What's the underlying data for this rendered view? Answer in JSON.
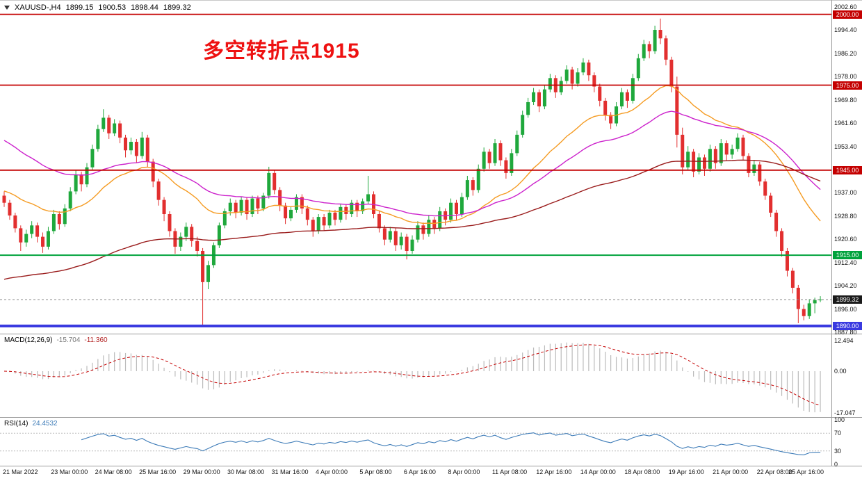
{
  "titlebar": {
    "symbol_period": "XAUUSD-,H4",
    "open": "1899.15",
    "high": "1900.53",
    "low": "1898.44",
    "close": "1899.32"
  },
  "annotation": {
    "text": "多空转折点1915",
    "color": "#ee1111"
  },
  "colors": {
    "bull": "#1fa83c",
    "bear": "#e22f2f",
    "macd_hist": "#bbbbbb",
    "macd_signal": "#c40000",
    "rsi_line": "#3e7cb8",
    "price_badge_bg": "#1a1a1a"
  },
  "chart_data": {
    "type": "candlestick",
    "symbol": "XAUUSD",
    "timeframe": "H4",
    "title": "XAUUSD-,H4",
    "current_ohlc": {
      "open": 1899.15,
      "high": 1900.53,
      "low": 1898.44,
      "close": 1899.32
    },
    "x_labels": [
      "21 Mar 2022",
      "23 Mar 00:00",
      "24 Mar 08:00",
      "25 Mar 16:00",
      "29 Mar 00:00",
      "30 Mar 08:00",
      "31 Mar 16:00",
      "4 Apr 00:00",
      "5 Apr 08:00",
      "6 Apr 16:00",
      "8 Apr 00:00",
      "11 Apr 08:00",
      "12 Apr 16:00",
      "14 Apr 00:00",
      "18 Apr 08:00",
      "19 Apr 16:00",
      "21 Apr 00:00",
      "22 Apr 08:00",
      "25 Apr 16:00"
    ],
    "price_axis": {
      "min": 1887.8,
      "max": 2002.6,
      "ticks": [
        "2002.60",
        "1994.40",
        "1986.20",
        "1978.00",
        "1969.80",
        "1961.60",
        "1953.40",
        "1937.00",
        "1928.80",
        "1920.60",
        "1912.40",
        "1904.20",
        "1896.00",
        "1887.80"
      ]
    },
    "hlines": [
      {
        "price": 2000.0,
        "label": "2000.00",
        "color": "#c40000",
        "width": 1.8
      },
      {
        "price": 1975.0,
        "label": "1975.00",
        "color": "#c40000",
        "width": 1.8
      },
      {
        "price": 1945.0,
        "label": "1945.00",
        "color": "#c40000",
        "width": 1.8
      },
      {
        "price": 1915.0,
        "label": "1915.00",
        "color": "#00a23c",
        "width": 2
      },
      {
        "price": 1890.0,
        "label": "1890.00",
        "color": "#3a3ae0",
        "width": 4
      }
    ],
    "current_price": {
      "value": 1899.32,
      "label": "1899.32"
    },
    "moving_averages": [
      {
        "name": "ma-fast",
        "period": 25,
        "seed": 1938.0,
        "color": "#f59b22"
      },
      {
        "name": "ma-mid",
        "period": 45,
        "seed": 1956.5,
        "color": "#cc22cc"
      },
      {
        "name": "ma-slow",
        "period": 110,
        "seed": 1906.0,
        "color": "#9a1c1c"
      }
    ],
    "macd": {
      "label": "MACD(12,26,9)",
      "main_value": "-15.704",
      "signal_value": "-11.360",
      "params": [
        12,
        26,
        9
      ],
      "axis": {
        "max": 12.494,
        "min": -17.047,
        "ticks": [
          "12.494",
          "0.00",
          "-17.047"
        ]
      }
    },
    "rsi": {
      "label": "RSI(14)",
      "value": "24.4532",
      "period": 14,
      "levels": [
        70,
        30
      ],
      "axis_ticks": [
        "100",
        "70",
        "30",
        "0"
      ]
    },
    "candles_ohlc": [
      [
        1936.0,
        1937.5,
        1932.0,
        1933.5
      ],
      [
        1933.5,
        1934.5,
        1927.5,
        1929.0
      ],
      [
        1929.0,
        1930.0,
        1923.0,
        1924.5
      ],
      [
        1924.5,
        1925.5,
        1916.5,
        1919.5
      ],
      [
        1919.5,
        1924.0,
        1918.0,
        1922.5
      ],
      [
        1922.5,
        1927.0,
        1921.0,
        1925.5
      ],
      [
        1925.5,
        1926.5,
        1919.5,
        1921.5
      ],
      [
        1921.5,
        1923.0,
        1915.8,
        1918.0
      ],
      [
        1918.0,
        1925.0,
        1917.0,
        1923.5
      ],
      [
        1923.5,
        1931.0,
        1922.5,
        1929.5
      ],
      [
        1929.5,
        1930.5,
        1924.0,
        1926.0
      ],
      [
        1926.0,
        1933.0,
        1925.0,
        1931.5
      ],
      [
        1931.5,
        1939.0,
        1930.5,
        1937.5
      ],
      [
        1937.5,
        1945.0,
        1936.5,
        1943.5
      ],
      [
        1943.5,
        1944.5,
        1937.5,
        1940.0
      ],
      [
        1940.0,
        1947.5,
        1939.0,
        1946.0
      ],
      [
        1946.0,
        1954.0,
        1945.0,
        1952.5
      ],
      [
        1952.5,
        1961.0,
        1951.5,
        1959.5
      ],
      [
        1959.5,
        1966.5,
        1958.5,
        1963.5
      ],
      [
        1963.5,
        1964.5,
        1956.0,
        1958.0
      ],
      [
        1958.0,
        1963.0,
        1957.0,
        1961.5
      ],
      [
        1961.5,
        1962.5,
        1954.5,
        1956.5
      ],
      [
        1956.5,
        1957.5,
        1949.5,
        1952.0
      ],
      [
        1952.0,
        1956.5,
        1950.5,
        1955.0
      ],
      [
        1955.0,
        1956.0,
        1947.5,
        1950.0
      ],
      [
        1950.0,
        1958.5,
        1949.0,
        1956.5
      ],
      [
        1956.5,
        1957.5,
        1946.0,
        1948.0
      ],
      [
        1948.0,
        1949.0,
        1939.0,
        1941.0
      ],
      [
        1941.0,
        1942.0,
        1932.5,
        1934.5
      ],
      [
        1934.5,
        1935.5,
        1927.0,
        1929.5
      ],
      [
        1929.5,
        1930.5,
        1921.5,
        1923.5
      ],
      [
        1923.5,
        1924.5,
        1915.5,
        1918.0
      ],
      [
        1918.0,
        1923.0,
        1916.5,
        1921.5
      ],
      [
        1921.5,
        1926.5,
        1920.0,
        1925.0
      ],
      [
        1925.0,
        1926.0,
        1918.0,
        1920.0
      ],
      [
        1920.0,
        1921.5,
        1914.5,
        1916.5
      ],
      [
        1916.5,
        1917.5,
        1890.3,
        1905.5
      ],
      [
        1905.5,
        1913.0,
        1903.0,
        1911.5
      ],
      [
        1911.5,
        1919.5,
        1910.5,
        1918.5
      ],
      [
        1918.5,
        1926.5,
        1917.5,
        1925.5
      ],
      [
        1925.5,
        1931.5,
        1924.5,
        1930.5
      ],
      [
        1930.5,
        1935.0,
        1929.0,
        1933.5
      ],
      [
        1933.5,
        1934.5,
        1928.0,
        1930.0
      ],
      [
        1930.0,
        1935.5,
        1929.0,
        1934.5
      ],
      [
        1934.5,
        1935.5,
        1927.5,
        1929.5
      ],
      [
        1929.5,
        1936.0,
        1928.5,
        1935.0
      ],
      [
        1935.0,
        1936.0,
        1929.5,
        1931.5
      ],
      [
        1931.5,
        1937.0,
        1930.5,
        1936.0
      ],
      [
        1936.0,
        1946.2,
        1935.0,
        1944.0
      ],
      [
        1944.0,
        1945.0,
        1936.5,
        1938.0
      ],
      [
        1938.0,
        1939.0,
        1930.5,
        1932.5
      ],
      [
        1932.5,
        1933.5,
        1926.0,
        1928.0
      ],
      [
        1928.0,
        1932.0,
        1927.0,
        1931.0
      ],
      [
        1931.0,
        1936.5,
        1930.0,
        1935.5
      ],
      [
        1935.5,
        1936.5,
        1929.5,
        1931.5
      ],
      [
        1931.5,
        1932.5,
        1925.5,
        1927.5
      ],
      [
        1927.5,
        1928.5,
        1921.5,
        1923.5
      ],
      [
        1923.5,
        1929.5,
        1922.5,
        1928.5
      ],
      [
        1928.5,
        1929.5,
        1923.5,
        1925.5
      ],
      [
        1925.5,
        1931.0,
        1924.5,
        1930.0
      ],
      [
        1930.0,
        1931.0,
        1925.5,
        1927.5
      ],
      [
        1927.5,
        1933.0,
        1926.5,
        1932.0
      ],
      [
        1932.0,
        1933.0,
        1927.5,
        1929.5
      ],
      [
        1929.5,
        1934.5,
        1928.5,
        1933.5
      ],
      [
        1933.5,
        1934.5,
        1928.5,
        1930.5
      ],
      [
        1930.5,
        1935.0,
        1929.5,
        1934.0
      ],
      [
        1934.0,
        1943.0,
        1933.0,
        1936.5
      ],
      [
        1936.5,
        1937.5,
        1928.0,
        1929.5
      ],
      [
        1929.5,
        1930.5,
        1923.0,
        1924.5
      ],
      [
        1924.5,
        1925.5,
        1918.5,
        1920.5
      ],
      [
        1920.5,
        1925.0,
        1919.5,
        1923.5
      ],
      [
        1923.5,
        1924.5,
        1916.5,
        1918.5
      ],
      [
        1918.5,
        1923.0,
        1917.0,
        1921.5
      ],
      [
        1921.5,
        1922.5,
        1913.5,
        1916.5
      ],
      [
        1916.5,
        1922.0,
        1915.5,
        1920.5
      ],
      [
        1920.5,
        1927.0,
        1919.5,
        1925.5
      ],
      [
        1925.5,
        1926.5,
        1920.5,
        1922.5
      ],
      [
        1922.5,
        1929.0,
        1921.5,
        1927.5
      ],
      [
        1927.5,
        1928.5,
        1922.5,
        1924.5
      ],
      [
        1924.5,
        1932.0,
        1923.5,
        1930.5
      ],
      [
        1930.5,
        1931.5,
        1925.5,
        1927.5
      ],
      [
        1927.5,
        1935.0,
        1926.5,
        1933.5
      ],
      [
        1933.5,
        1934.5,
        1927.5,
        1929.5
      ],
      [
        1929.5,
        1937.0,
        1928.5,
        1935.5
      ],
      [
        1935.5,
        1943.0,
        1934.5,
        1941.5
      ],
      [
        1941.5,
        1942.5,
        1936.0,
        1938.0
      ],
      [
        1938.0,
        1947.0,
        1937.0,
        1945.5
      ],
      [
        1945.5,
        1953.0,
        1944.5,
        1951.5
      ],
      [
        1951.5,
        1952.5,
        1945.5,
        1947.5
      ],
      [
        1947.5,
        1956.0,
        1946.5,
        1954.5
      ],
      [
        1954.5,
        1955.5,
        1946.5,
        1948.5
      ],
      [
        1948.5,
        1949.5,
        1942.0,
        1944.0
      ],
      [
        1944.0,
        1952.5,
        1943.0,
        1951.0
      ],
      [
        1951.0,
        1959.0,
        1950.0,
        1957.5
      ],
      [
        1957.5,
        1966.0,
        1956.5,
        1964.5
      ],
      [
        1964.5,
        1970.5,
        1963.5,
        1969.0
      ],
      [
        1969.0,
        1974.0,
        1968.0,
        1972.5
      ],
      [
        1972.5,
        1973.5,
        1965.5,
        1967.5
      ],
      [
        1967.5,
        1975.0,
        1966.5,
        1973.5
      ],
      [
        1973.5,
        1979.0,
        1972.5,
        1977.5
      ],
      [
        1977.5,
        1978.5,
        1970.5,
        1972.5
      ],
      [
        1972.5,
        1978.0,
        1971.5,
        1976.5
      ],
      [
        1976.5,
        1982.0,
        1975.5,
        1980.5
      ],
      [
        1980.5,
        1981.5,
        1973.5,
        1975.5
      ],
      [
        1975.5,
        1981.0,
        1974.5,
        1979.5
      ],
      [
        1979.5,
        1984.5,
        1978.5,
        1983.0
      ],
      [
        1983.0,
        1984.0,
        1976.5,
        1978.5
      ],
      [
        1978.5,
        1979.5,
        1972.5,
        1974.5
      ],
      [
        1974.5,
        1975.5,
        1967.5,
        1969.5
      ],
      [
        1969.5,
        1970.5,
        1962.5,
        1964.5
      ],
      [
        1964.5,
        1965.5,
        1959.5,
        1961.5
      ],
      [
        1961.5,
        1969.0,
        1960.5,
        1967.5
      ],
      [
        1967.5,
        1974.0,
        1966.5,
        1972.5
      ],
      [
        1972.5,
        1973.5,
        1967.0,
        1969.5
      ],
      [
        1969.5,
        1979.0,
        1968.5,
        1977.5
      ],
      [
        1977.5,
        1986.0,
        1976.5,
        1984.5
      ],
      [
        1984.5,
        1991.0,
        1983.5,
        1989.5
      ],
      [
        1989.5,
        1990.5,
        1984.5,
        1987.0
      ],
      [
        1987.0,
        1996.0,
        1986.0,
        1994.5
      ],
      [
        1994.5,
        1998.5,
        1989.5,
        1991.5
      ],
      [
        1991.5,
        1992.5,
        1982.0,
        1984.0
      ],
      [
        1984.0,
        1985.0,
        1972.5,
        1974.5
      ],
      [
        1974.5,
        1978.0,
        1953.0,
        1957.5
      ],
      [
        1957.5,
        1960.0,
        1943.5,
        1946.0
      ],
      [
        1946.0,
        1953.5,
        1945.0,
        1951.5
      ],
      [
        1951.5,
        1952.5,
        1942.5,
        1944.5
      ],
      [
        1944.5,
        1951.0,
        1943.5,
        1949.5
      ],
      [
        1949.5,
        1950.5,
        1943.0,
        1945.5
      ],
      [
        1945.5,
        1954.0,
        1944.5,
        1952.5
      ],
      [
        1952.5,
        1953.5,
        1945.5,
        1947.5
      ],
      [
        1947.5,
        1956.0,
        1946.5,
        1954.5
      ],
      [
        1954.5,
        1955.5,
        1948.5,
        1950.5
      ],
      [
        1950.5,
        1954.0,
        1949.0,
        1952.5
      ],
      [
        1952.5,
        1958.0,
        1951.5,
        1956.5
      ],
      [
        1956.5,
        1957.5,
        1948.5,
        1950.0
      ],
      [
        1950.0,
        1951.0,
        1942.5,
        1944.0
      ],
      [
        1944.0,
        1948.5,
        1943.0,
        1947.0
      ],
      [
        1947.0,
        1948.0,
        1939.5,
        1941.0
      ],
      [
        1941.0,
        1942.0,
        1934.5,
        1936.0
      ],
      [
        1936.0,
        1937.0,
        1928.5,
        1930.0
      ],
      [
        1930.0,
        1931.0,
        1921.5,
        1923.5
      ],
      [
        1923.5,
        1924.5,
        1914.5,
        1916.5
      ],
      [
        1916.5,
        1917.5,
        1907.5,
        1909.5
      ],
      [
        1909.5,
        1910.5,
        1901.5,
        1903.5
      ],
      [
        1903.5,
        1904.5,
        1891.0,
        1896.0
      ],
      [
        1896.0,
        1897.5,
        1892.0,
        1893.5
      ],
      [
        1893.5,
        1899.5,
        1892.5,
        1898.0
      ],
      [
        1898.0,
        1900.0,
        1894.5,
        1899.15
      ],
      [
        1899.15,
        1900.53,
        1898.44,
        1899.32
      ]
    ]
  }
}
